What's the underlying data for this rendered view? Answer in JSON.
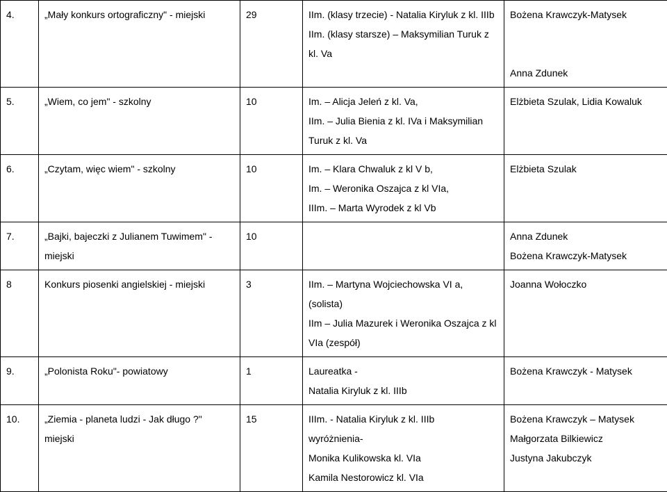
{
  "rows": [
    {
      "num": "4.",
      "name": "„Mały konkurs ortograficzny\" - miejski",
      "count": "29",
      "mid": "IIm. (klasy trzecie) - Natalia Kiryluk z kl. IIIb\nIIm. (klasy starsze) – Maksymilian Turuk z kl. Va",
      "right": "Bożena Krawczyk-Matysek\n\n\nAnna Zdunek"
    },
    {
      "num": "5.",
      "name": "„Wiem, co jem\" - szkolny",
      "count": "10",
      "mid": "Im. – Alicja Jeleń z kl. Va,\nIIm. – Julia Bienia z kl. IVa i Maksymilian Turuk z kl. Va",
      "right": "Elżbieta Szulak, Lidia Kowaluk"
    },
    {
      "num": "6.",
      "name": "„Czytam, więc wiem\" - szkolny",
      "count": "10",
      "mid": "Im. – Klara Chwaluk z kl V b,\nIm. – Weronika Oszajca z kl VIa,\nIIIm. – Marta Wyrodek z kl Vb",
      "right": "Elżbieta Szulak"
    },
    {
      "num": "7.",
      "name": "„Bajki, bajeczki z Julianem Tuwimem\"  - miejski",
      "count": "10",
      "mid": "",
      "right": "Anna Zdunek\nBożena Krawczyk-Matysek"
    },
    {
      "num": "8",
      "name": "Konkurs piosenki angielskiej - miejski",
      "count": "3",
      "mid": "IIm. – Martyna Wojciechowska VI a, (solista)\nIIm – Julia Mazurek i Weronika Oszajca z kl VIa (zespół)",
      "right": "Joanna Wołoczko"
    },
    {
      "num": "9.",
      "name": "„Polonista Roku\"- powiatowy",
      "count": "1",
      "mid": "Laureatka -\nNatalia Kiryluk z kl. IIIb",
      "right": "Bożena Krawczyk - Matysek"
    },
    {
      "num": "10.",
      "name": "„Ziemia - planeta ludzi - Jak długo ?\"\nmiejski",
      "count": "15",
      "mid": "IIIm. - Natalia Kiryluk z kl. IIIb\nwyróżnienia-\nMonika Kulikowska kl. VIa\nKamila Nestorowicz kl. VIa",
      "right": "Bożena Krawczyk – Matysek\nMałgorzata Bilkiewicz\nJustyna Jakubczyk"
    }
  ]
}
